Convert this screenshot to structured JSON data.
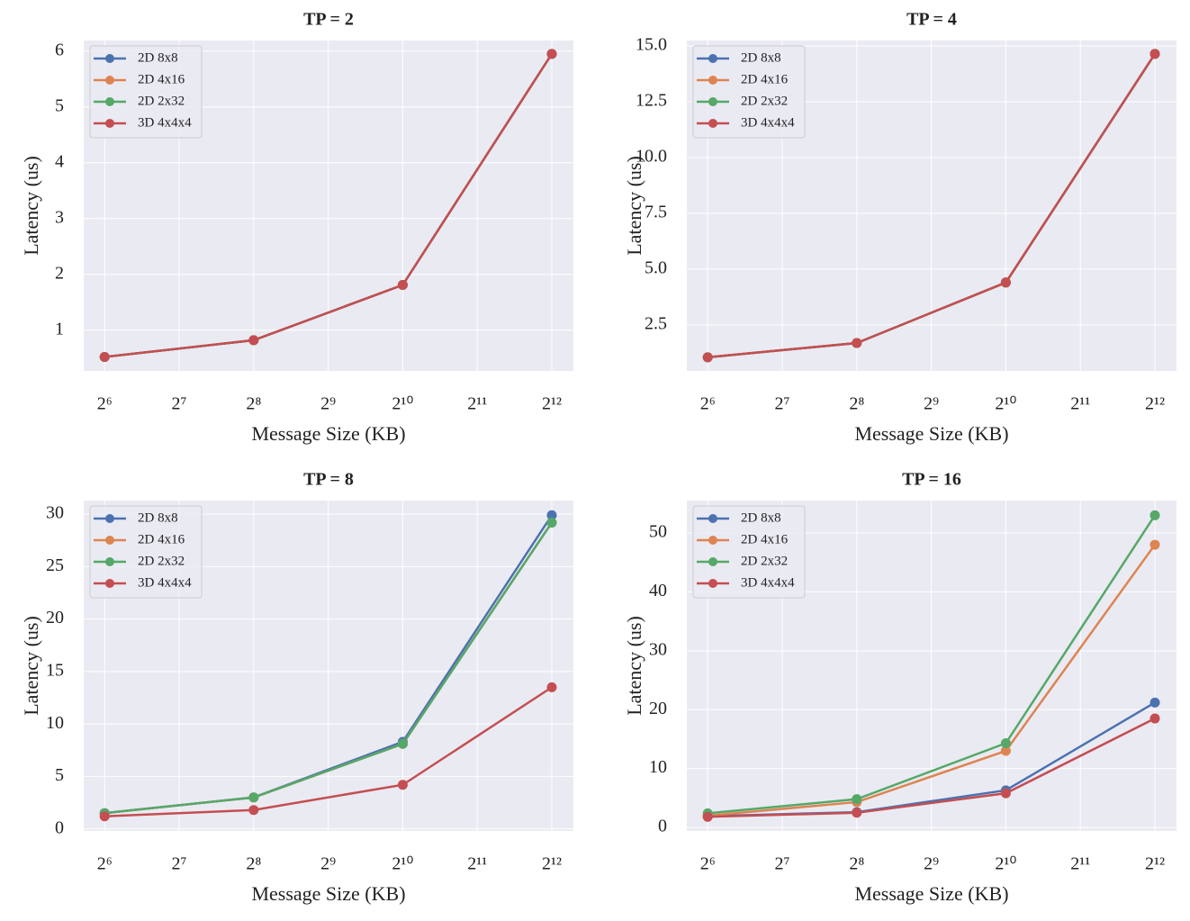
{
  "chart_data": [
    {
      "type": "line",
      "title": "TP = 2",
      "xlabel": "Message Size (KB)",
      "ylabel": "Latency (us)",
      "x": [
        64,
        256,
        1024,
        4096
      ],
      "xscale": "log",
      "xlim": [
        52.7,
        5007
      ],
      "xticks": [
        {
          "value": 64,
          "label": "2⁶"
        },
        {
          "value": 128,
          "label": "2⁷"
        },
        {
          "value": 256,
          "label": "2⁸"
        },
        {
          "value": 512,
          "label": "2⁹"
        },
        {
          "value": 1024,
          "label": "2¹⁰"
        },
        {
          "value": 2048,
          "label": "2¹¹"
        },
        {
          "value": 4096,
          "label": "2¹²"
        }
      ],
      "ylim": [
        0.27,
        6.19
      ],
      "yticks": [
        1,
        2,
        3,
        4,
        5,
        6
      ],
      "grid": true,
      "legend": "upper left",
      "series": [
        {
          "name": "2D 8x8",
          "color": "#4c72b0",
          "values": [
            0.52,
            0.82,
            1.81,
            5.95
          ]
        },
        {
          "name": "2D 4x16",
          "color": "#dd8452",
          "values": [
            0.52,
            0.82,
            1.81,
            5.95
          ]
        },
        {
          "name": "2D 2x32",
          "color": "#55a868",
          "values": [
            0.52,
            0.82,
            1.81,
            5.95
          ]
        },
        {
          "name": "3D 4x4x4",
          "color": "#c44e52",
          "values": [
            0.52,
            0.82,
            1.81,
            5.95
          ]
        }
      ]
    },
    {
      "type": "line",
      "title": "TP = 4",
      "xlabel": "Message Size (KB)",
      "ylabel": "Latency (us)",
      "x": [
        64,
        256,
        1024,
        4096
      ],
      "xscale": "log",
      "xlim": [
        52.7,
        5007
      ],
      "xticks": [
        {
          "value": 64,
          "label": "2⁶"
        },
        {
          "value": 128,
          "label": "2⁷"
        },
        {
          "value": 256,
          "label": "2⁸"
        },
        {
          "value": 512,
          "label": "2⁹"
        },
        {
          "value": 1024,
          "label": "2¹⁰"
        },
        {
          "value": 2048,
          "label": "2¹¹"
        },
        {
          "value": 4096,
          "label": "2¹²"
        }
      ],
      "ylim": [
        0.44,
        15.24
      ],
      "yticks": [
        2.5,
        {
          "value": 5,
          "label": "5.0"
        },
        7.5,
        {
          "value": 10,
          "label": "10.0"
        },
        12.5,
        {
          "value": 15,
          "label": "15.0"
        }
      ],
      "grid": true,
      "legend": "upper left",
      "series": [
        {
          "name": "2D 8x8",
          "color": "#4c72b0",
          "values": [
            1.05,
            1.69,
            4.4,
            14.64
          ]
        },
        {
          "name": "2D 4x16",
          "color": "#dd8452",
          "values": [
            1.05,
            1.69,
            4.4,
            14.64
          ]
        },
        {
          "name": "2D 2x32",
          "color": "#55a868",
          "values": [
            1.05,
            1.69,
            4.4,
            14.64
          ]
        },
        {
          "name": "3D 4x4x4",
          "color": "#c44e52",
          "values": [
            1.05,
            1.69,
            4.4,
            14.64
          ]
        }
      ]
    },
    {
      "type": "line",
      "title": "TP = 8",
      "xlabel": "Message Size (KB)",
      "ylabel": "Latency (us)",
      "x": [
        64,
        256,
        1024,
        4096
      ],
      "xscale": "log",
      "xlim": [
        52.7,
        5007
      ],
      "xticks": [
        {
          "value": 64,
          "label": "2⁶"
        },
        {
          "value": 128,
          "label": "2⁷"
        },
        {
          "value": 256,
          "label": "2⁸"
        },
        {
          "value": 512,
          "label": "2⁹"
        },
        {
          "value": 1024,
          "label": "2¹⁰"
        },
        {
          "value": 2048,
          "label": "2¹¹"
        },
        {
          "value": 4096,
          "label": "2¹²"
        }
      ],
      "ylim": [
        -0.2,
        31.3
      ],
      "yticks": [
        0,
        5,
        10,
        15,
        20,
        25,
        30
      ],
      "grid": true,
      "legend": "upper left",
      "series": [
        {
          "name": "2D 8x8",
          "color": "#4c72b0",
          "values": [
            1.5,
            3.0,
            8.3,
            29.9
          ]
        },
        {
          "name": "2D 4x16",
          "color": "#dd8452",
          "values": [
            1.5,
            3.0,
            8.1,
            29.2
          ]
        },
        {
          "name": "2D 2x32",
          "color": "#55a868",
          "values": [
            1.5,
            3.0,
            8.1,
            29.2
          ]
        },
        {
          "name": "3D 4x4x4",
          "color": "#c44e52",
          "values": [
            1.2,
            1.8,
            4.2,
            13.5
          ]
        }
      ]
    },
    {
      "type": "line",
      "title": "TP = 16",
      "xlabel": "Message Size (KB)",
      "ylabel": "Latency (us)",
      "x": [
        64,
        256,
        1024,
        4096
      ],
      "xscale": "log",
      "xlim": [
        52.7,
        5007
      ],
      "xticks": [
        {
          "value": 64,
          "label": "2⁶"
        },
        {
          "value": 128,
          "label": "2⁷"
        },
        {
          "value": 256,
          "label": "2⁸"
        },
        {
          "value": 512,
          "label": "2⁹"
        },
        {
          "value": 1024,
          "label": "2¹⁰"
        },
        {
          "value": 2048,
          "label": "2¹¹"
        },
        {
          "value": 4096,
          "label": "2¹²"
        }
      ],
      "ylim": [
        -0.6,
        55.5
      ],
      "yticks": [
        0,
        10,
        20,
        30,
        40,
        50
      ],
      "grid": true,
      "legend": "upper left",
      "series": [
        {
          "name": "2D 8x8",
          "color": "#4c72b0",
          "values": [
            1.9,
            2.6,
            6.3,
            21.2
          ]
        },
        {
          "name": "2D 4x16",
          "color": "#dd8452",
          "values": [
            2.0,
            4.3,
            13.0,
            48.0
          ]
        },
        {
          "name": "2D 2x32",
          "color": "#55a868",
          "values": [
            2.4,
            4.8,
            14.3,
            53.0
          ]
        },
        {
          "name": "3D 4x4x4",
          "color": "#c44e52",
          "values": [
            1.8,
            2.5,
            5.8,
            18.5
          ]
        }
      ]
    }
  ]
}
